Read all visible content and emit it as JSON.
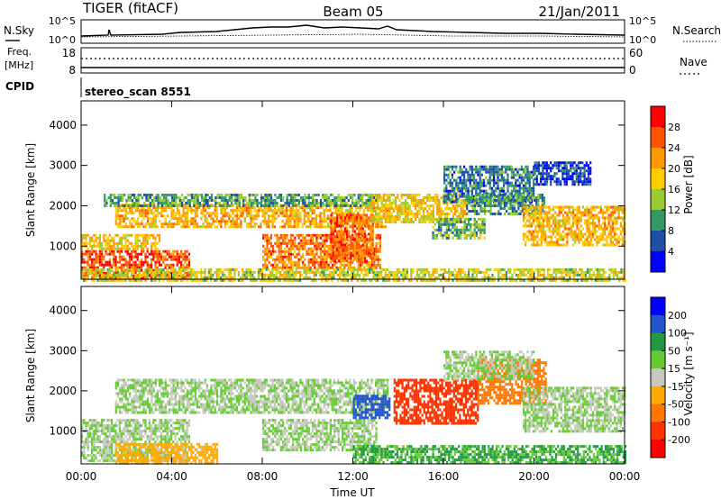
{
  "header": {
    "station": "TIGER (fitACF)",
    "beam": "Beam 05",
    "date": "21/Jan/2011"
  },
  "top_panels": {
    "nsky_label": "N.Sky",
    "nsky_ticks_left": [
      "10^5",
      "10^0"
    ],
    "nsky_ticks_right": [
      "10^5",
      "10^0"
    ],
    "nsearch_label": "N.Search",
    "freq_label_line1": "Freq.",
    "freq_label_line2": "[MHz]",
    "freq_ticks": [
      "18",
      "8"
    ],
    "nave_ticks": [
      "60",
      "0"
    ],
    "nave_label": "Nave",
    "cpid_label": "CPID",
    "cpid_text": "stereo_scan 8551"
  },
  "chart_data": [
    {
      "type": "heatmap",
      "name": "power",
      "xlabel": "",
      "ylabel": "Slant Range [km]",
      "xlim": [
        0,
        24
      ],
      "ylim": [
        180,
        4600
      ],
      "yticks": [
        1000,
        2000,
        3000,
        4000
      ],
      "colorbar": {
        "label": "Power [dB]",
        "ticks": [
          "28",
          "24",
          "20",
          "16",
          "12",
          "8",
          "4"
        ],
        "colors": [
          "#ff0000",
          "#ff5500",
          "#ff9900",
          "#ffcc00",
          "#99cc33",
          "#339966",
          "#1f4fa8",
          "#0000ff"
        ]
      },
      "echo_regions": [
        {
          "t0": 0.0,
          "t1": 4.8,
          "r0": 200,
          "r1": 900,
          "power": 29
        },
        {
          "t0": 0.0,
          "t1": 3.5,
          "r0": 900,
          "r1": 1300,
          "power": 21
        },
        {
          "t0": 1.5,
          "t1": 13.5,
          "r0": 1450,
          "r1": 2050,
          "power": 22
        },
        {
          "t0": 1.0,
          "t1": 13.0,
          "r0": 2000,
          "r1": 2300,
          "power": 13
        },
        {
          "t0": 8.0,
          "t1": 13.2,
          "r0": 450,
          "r1": 1300,
          "power": 26
        },
        {
          "t0": 11.0,
          "t1": 12.9,
          "r0": 650,
          "r1": 1800,
          "power": 27
        },
        {
          "t0": 12.8,
          "t1": 17.0,
          "r0": 1600,
          "r1": 2300,
          "power": 20
        },
        {
          "t0": 15.5,
          "t1": 17.8,
          "r0": 1200,
          "r1": 1700,
          "power": 14
        },
        {
          "t0": 16.0,
          "t1": 20.0,
          "r0": 2100,
          "r1": 3000,
          "power": 10
        },
        {
          "t0": 17.0,
          "t1": 20.5,
          "r0": 1800,
          "r1": 2300,
          "power": 12
        },
        {
          "t0": 19.5,
          "t1": 24.0,
          "r0": 1000,
          "r1": 2000,
          "power": 22
        },
        {
          "t0": 20.0,
          "t1": 22.5,
          "r0": 2500,
          "r1": 3100,
          "power": 7
        },
        {
          "t0": 0.0,
          "t1": 24.0,
          "r0": 180,
          "r1": 450,
          "power": 18
        }
      ]
    },
    {
      "type": "heatmap",
      "name": "velocity",
      "xlabel": "Time UT",
      "ylabel": "Slant Range [km]",
      "xlim": [
        0,
        24
      ],
      "ylim": [
        180,
        4600
      ],
      "xticks": [
        "00:00",
        "04:00",
        "08:00",
        "12:00",
        "16:00",
        "20:00",
        "00:00"
      ],
      "yticks": [
        1000,
        2000,
        3000,
        4000
      ],
      "colorbar": {
        "label": "Velocity [m s⁻¹]",
        "ticks": [
          "200",
          "100",
          "50",
          "15",
          "-15",
          "-50",
          "-100",
          "-200"
        ],
        "colors": [
          "#0000ff",
          "#2255cc",
          "#229944",
          "#66cc33",
          "#c8c8c0",
          "#ffaa00",
          "#ff7700",
          "#ff3300",
          "#ff0000"
        ]
      },
      "echo_regions": [
        {
          "t0": 0.0,
          "t1": 4.8,
          "r0": 250,
          "r1": 1300,
          "velocity": 0
        },
        {
          "t0": 1.5,
          "t1": 13.5,
          "r0": 1450,
          "r1": 2300,
          "velocity": 0
        },
        {
          "t0": 8.0,
          "t1": 13.0,
          "r0": 500,
          "r1": 1300,
          "velocity": 0
        },
        {
          "t0": 1.5,
          "t1": 6.0,
          "r0": 180,
          "r1": 700,
          "velocity": -50
        },
        {
          "t0": 12.0,
          "t1": 13.6,
          "r0": 1300,
          "r1": 1900,
          "velocity": 130
        },
        {
          "t0": 13.8,
          "t1": 17.5,
          "r0": 1200,
          "r1": 2300,
          "velocity": -180
        },
        {
          "t0": 17.5,
          "t1": 20.5,
          "r0": 1700,
          "r1": 2800,
          "velocity": -120
        },
        {
          "t0": 16.0,
          "t1": 20.0,
          "r0": 2300,
          "r1": 3000,
          "velocity": 0
        },
        {
          "t0": 19.5,
          "t1": 24.0,
          "r0": 1000,
          "r1": 2100,
          "velocity": 0
        },
        {
          "t0": 12.0,
          "t1": 24.0,
          "r0": 180,
          "r1": 650,
          "velocity": 35
        }
      ]
    }
  ]
}
